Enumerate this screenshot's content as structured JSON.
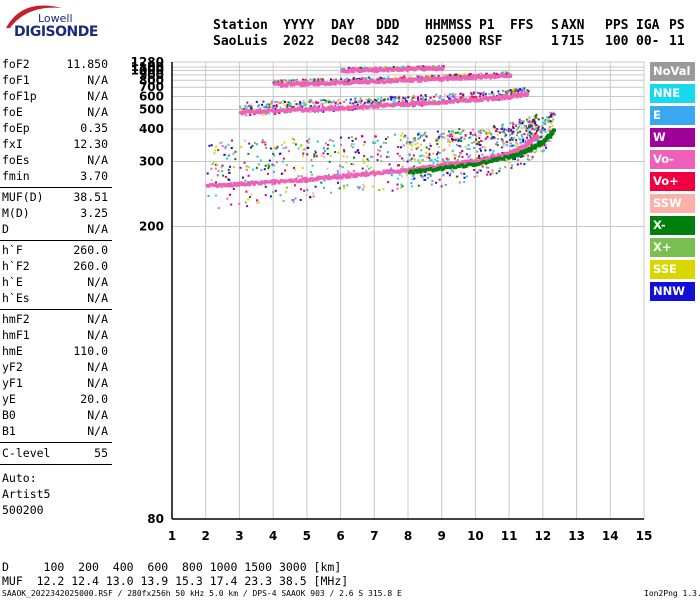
{
  "logo": {
    "line1": "Lowell",
    "line2": "DIGISONDE"
  },
  "header": {
    "labels": [
      "Station",
      "YYYY",
      "DAY",
      "DDD",
      "HHMMSS",
      "P1",
      "FFS",
      "S",
      "AXN",
      "PPS",
      "IGA",
      "PS"
    ],
    "values": [
      "SaoLuis",
      "2022",
      "Dec08",
      "342",
      "025000",
      "RSF",
      "",
      "1",
      "715",
      "100",
      "00-",
      "11"
    ]
  },
  "params": {
    "group1": [
      {
        "name": "foF2",
        "value": "11.850"
      },
      {
        "name": "foF1",
        "value": "N/A"
      },
      {
        "name": "foF1p",
        "value": "N/A"
      },
      {
        "name": "foE",
        "value": "N/A"
      },
      {
        "name": "foEp",
        "value": "0.35"
      },
      {
        "name": "fxI",
        "value": "12.30"
      },
      {
        "name": "foEs",
        "value": "N/A"
      },
      {
        "name": "fmin",
        "value": "3.70"
      }
    ],
    "group2": [
      {
        "name": "MUF(D)",
        "value": "38.51"
      },
      {
        "name": "M(D)",
        "value": "3.25"
      },
      {
        "name": "D",
        "value": "N/A"
      }
    ],
    "group3": [
      {
        "name": "h`F",
        "value": "260.0"
      },
      {
        "name": "h`F2",
        "value": "260.0"
      },
      {
        "name": "h`E",
        "value": "N/A"
      },
      {
        "name": "h`Es",
        "value": "N/A"
      }
    ],
    "group4": [
      {
        "name": "hmF2",
        "value": "N/A"
      },
      {
        "name": "hmF1",
        "value": "N/A"
      },
      {
        "name": "hmE",
        "value": "110.0"
      },
      {
        "name": "yF2",
        "value": "N/A"
      },
      {
        "name": "yF1",
        "value": "N/A"
      },
      {
        "name": "yE",
        "value": "20.0"
      },
      {
        "name": "B0",
        "value": "N/A"
      },
      {
        "name": "B1",
        "value": "N/A"
      }
    ],
    "group5": [
      {
        "name": "C-level",
        "value": "55"
      }
    ]
  },
  "notes": [
    "Auto:",
    "Artist5",
    "500200"
  ],
  "legend": [
    {
      "label": "NoVal",
      "color": "#9a9a9a"
    },
    {
      "label": "NNE",
      "color": "#18d8f0"
    },
    {
      "label": "E",
      "color": "#3aa8f0"
    },
    {
      "label": "W",
      "color": "#a0009a"
    },
    {
      "label": "Vo-",
      "color": "#f060b8"
    },
    {
      "label": "Vo+",
      "color": "#f00040"
    },
    {
      "label": "SSW",
      "color": "#f8b0a8"
    },
    {
      "label": "X-",
      "color": "#00800a"
    },
    {
      "label": "X+",
      "color": "#78c050"
    },
    {
      "label": "SSE",
      "color": "#d8d800"
    },
    {
      "label": "NNW",
      "color": "#1010d8"
    }
  ],
  "bottom": {
    "row1": "D     100  200  400  600  800 1000 1500 3000 [km]",
    "row2": "MUF  12.2 12.4 13.0 13.9 15.3 17.4 23.3 38.5 [MHz]"
  },
  "footer": {
    "left": "SAAOK_2022342025000.RSF / 280fx256h 50 kHz 5.0 km / DPS-4 SAAOK 903 / 2.6 S 315.8 E",
    "right": "Ion2Png 1.3.17"
  },
  "chart_data": {
    "type": "scatter",
    "title": "",
    "xlabel": "",
    "ylabel": "",
    "xlim": [
      1,
      15
    ],
    "ylim": [
      80,
      1280
    ],
    "y_scale": "reciprocal",
    "x_ticks": [
      1,
      2,
      3,
      4,
      5,
      6,
      7,
      8,
      9,
      10,
      11,
      12,
      13,
      14,
      15
    ],
    "y_ticks": [
      80,
      200,
      300,
      400,
      500,
      600,
      700,
      800,
      900,
      1000,
      1100,
      1280
    ],
    "grid": true,
    "legend_position": "right",
    "traces": [
      {
        "name": "first hop O",
        "color": "#f060b8",
        "x": [
          2.0,
          3.0,
          4.0,
          5.0,
          6.0,
          7.0,
          8.0,
          9.0,
          10.0,
          11.0,
          11.5,
          11.8
        ],
        "y": [
          255,
          258,
          262,
          266,
          272,
          278,
          285,
          295,
          305,
          325,
          350,
          380
        ]
      },
      {
        "name": "first hop X",
        "color": "#00800a",
        "x": [
          8.0,
          9.0,
          10.0,
          11.0,
          11.6,
          12.0,
          12.3
        ],
        "y": [
          280,
          288,
          298,
          315,
          335,
          360,
          400
        ]
      },
      {
        "name": "second hop O",
        "color": "#f060b8",
        "x": [
          3.0,
          4.0,
          5.0,
          6.0,
          7.0,
          8.0,
          9.0,
          10.0,
          11.0,
          11.5
        ],
        "y": [
          490,
          500,
          510,
          520,
          535,
          550,
          565,
          585,
          610,
          640
        ]
      },
      {
        "name": "third hop O",
        "color": "#f060b8",
        "x": [
          4.0,
          5.0,
          6.0,
          7.0,
          8.0,
          9.0,
          10.0,
          11.0
        ],
        "y": [
          750,
          765,
          785,
          805,
          825,
          850,
          880,
          920
        ]
      },
      {
        "name": "fourth hop O",
        "color": "#f060b8",
        "x": [
          6.0,
          7.0,
          8.0,
          9.0
        ],
        "y": [
          1030,
          1050,
          1080,
          1110
        ]
      }
    ]
  }
}
